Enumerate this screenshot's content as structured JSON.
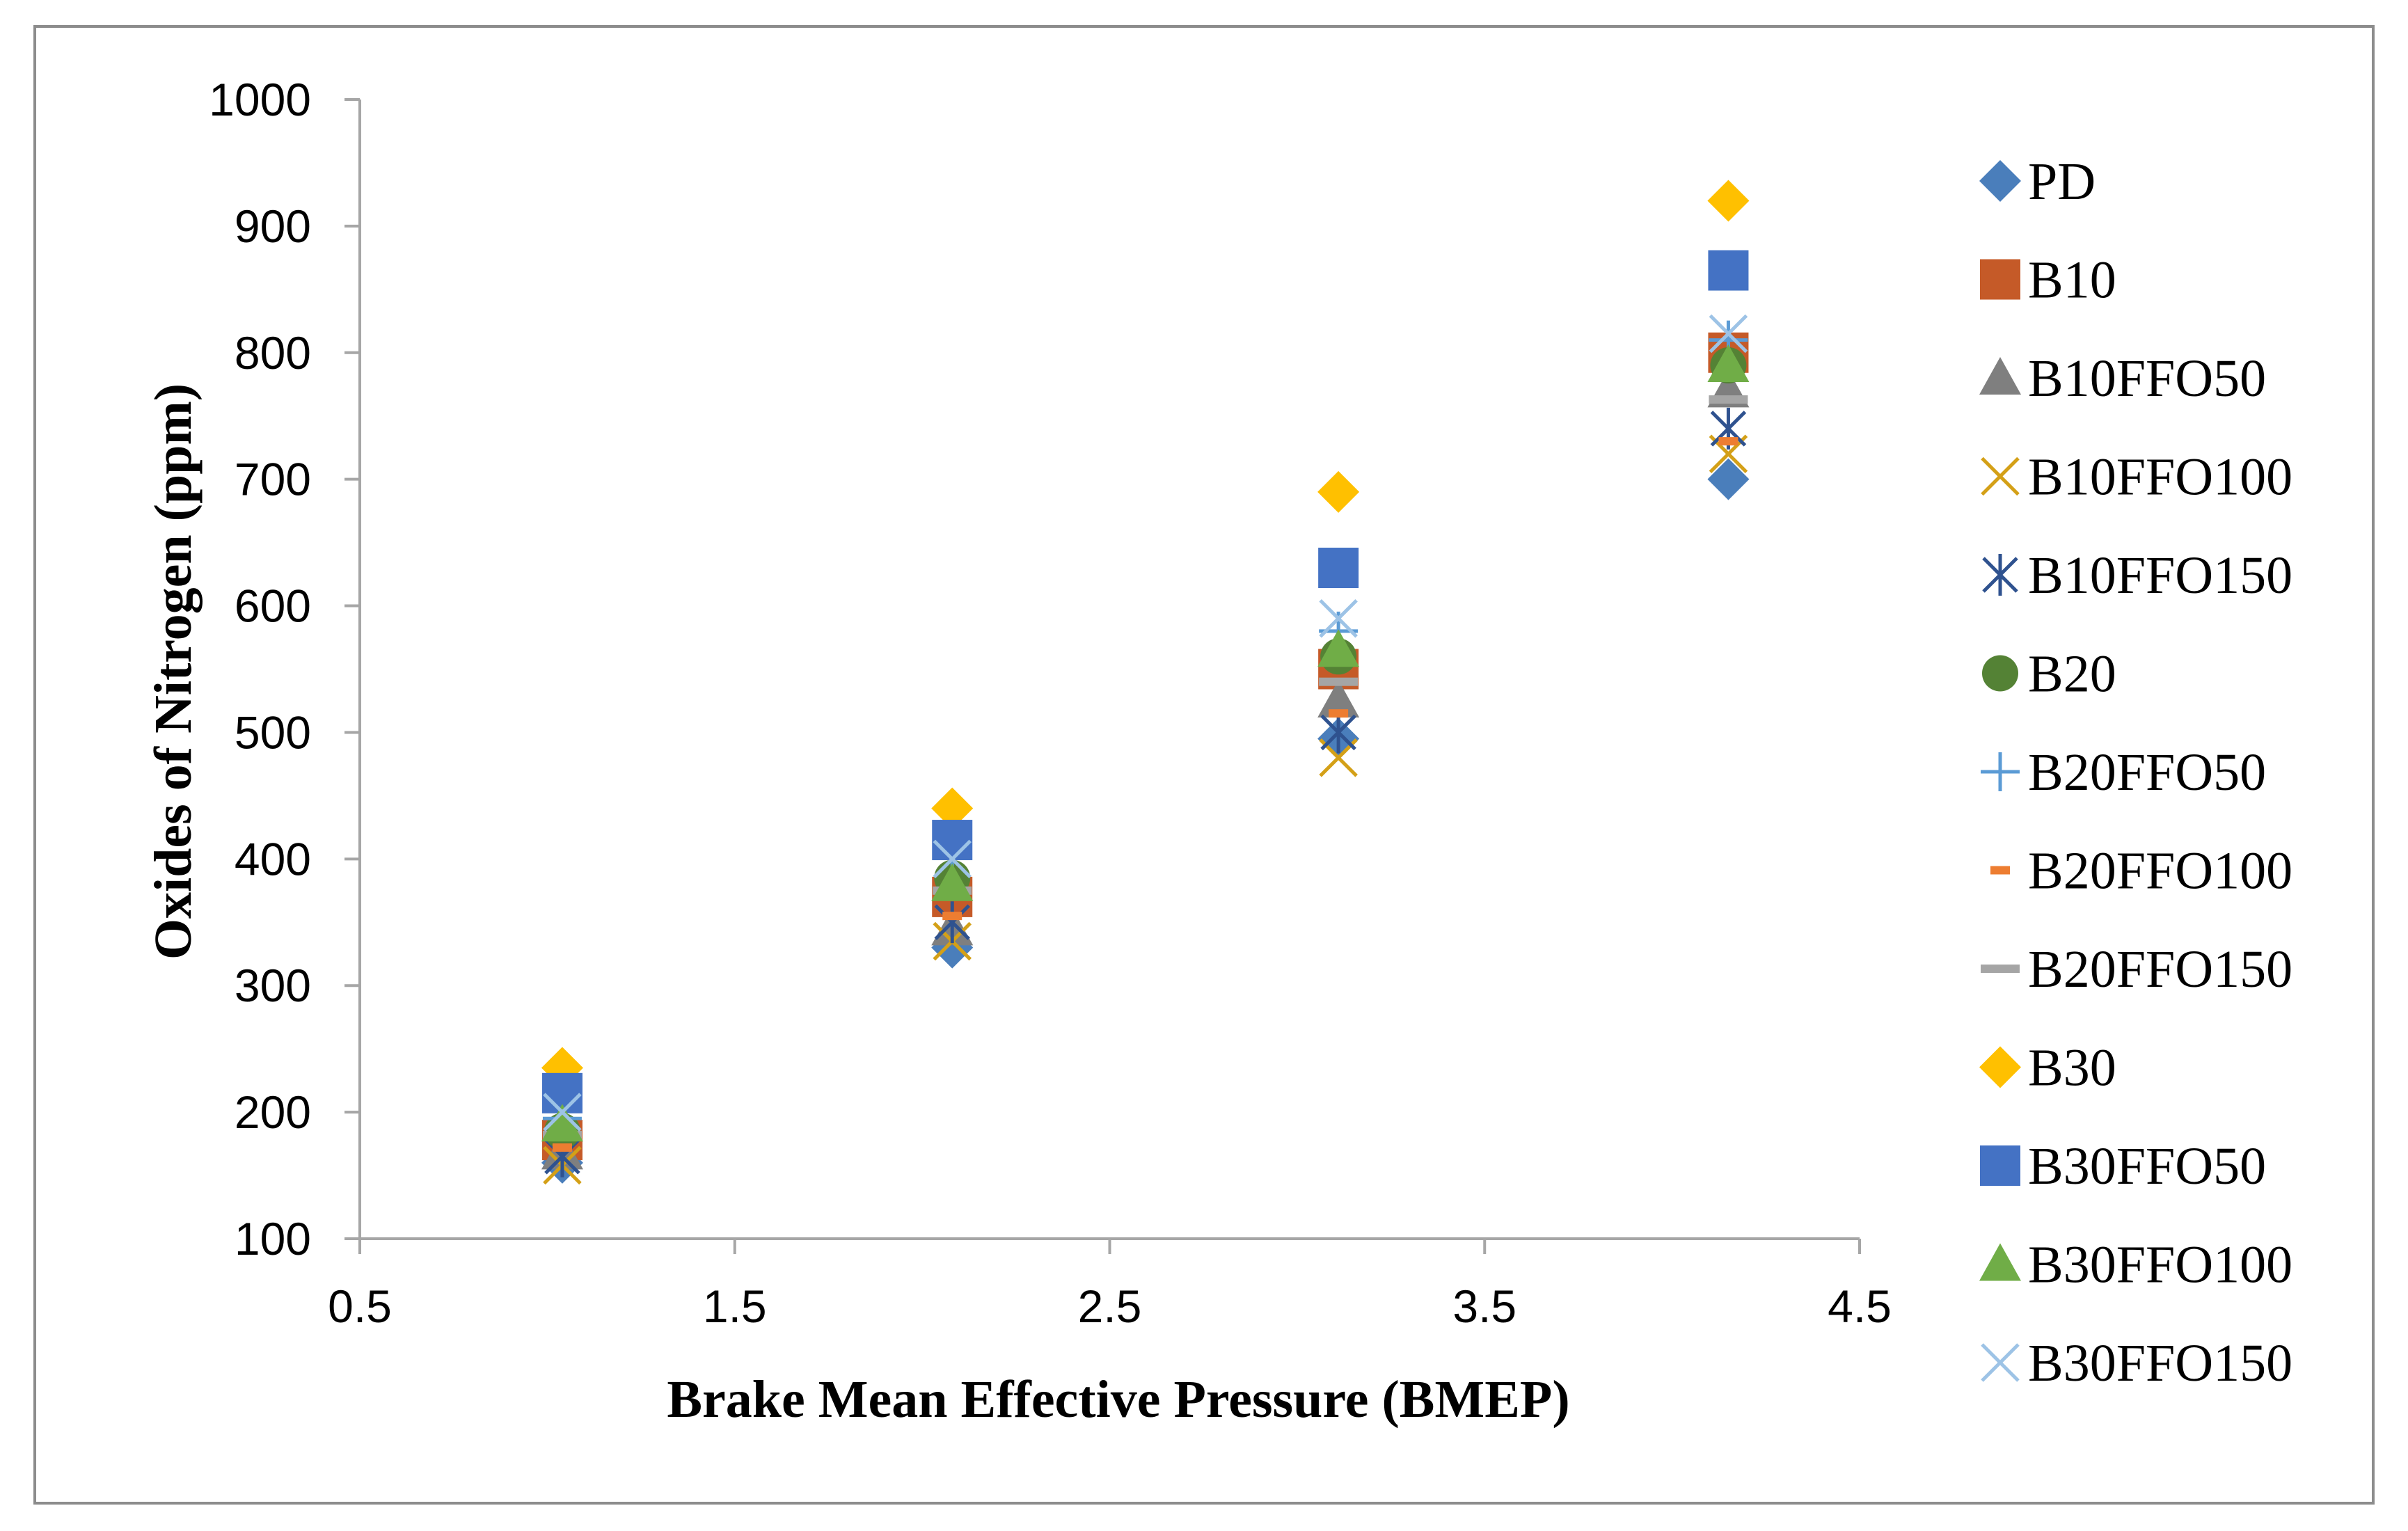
{
  "chart_data": {
    "type": "scatter",
    "title": "",
    "xlabel": "Brake Mean Effective Pressure (BMEP)",
    "ylabel": "Oxides of Nitrogen (ppm)",
    "xlim": [
      0.5,
      4.5
    ],
    "ylim": [
      100,
      1000
    ],
    "xticks": [
      0.5,
      1.5,
      2.5,
      3.5,
      4.5
    ],
    "xtick_labels": [
      "0.5",
      "1.5",
      "2.5",
      "3.5",
      "4.5"
    ],
    "yticks": [
      100,
      200,
      300,
      400,
      500,
      600,
      700,
      800,
      900,
      1000
    ],
    "ytick_labels": [
      "100",
      "200",
      "300",
      "400",
      "500",
      "600",
      "700",
      "800",
      "900",
      "1000"
    ],
    "grid": false,
    "legend_position": "right",
    "x": [
      1.04,
      2.08,
      3.11,
      4.15
    ],
    "series": [
      {
        "name": "PD",
        "marker": "diamond",
        "color": "#4a7ebb",
        "values": [
          160,
          330,
          495,
          700
        ]
      },
      {
        "name": "B10",
        "marker": "square",
        "color": "#c55a28",
        "values": [
          178,
          370,
          550,
          800
        ]
      },
      {
        "name": "B10FFO50",
        "marker": "triangle",
        "color": "#7f7f7f",
        "values": [
          168,
          345,
          525,
          770
        ]
      },
      {
        "name": "B10FFO100",
        "marker": "x",
        "color": "#d4a017",
        "values": [
          158,
          335,
          480,
          720
        ]
      },
      {
        "name": "B10FFO150",
        "marker": "star",
        "color": "#2f528f",
        "values": [
          165,
          350,
          500,
          740
        ]
      },
      {
        "name": "B20",
        "marker": "circle",
        "color": "#548235",
        "values": [
          185,
          385,
          560,
          790
        ]
      },
      {
        "name": "B20FFO50",
        "marker": "plus",
        "color": "#5b9bd5",
        "values": [
          195,
          405,
          580,
          810
        ]
      },
      {
        "name": "B20FFO100",
        "marker": "dash",
        "color": "#ed7d31",
        "values": [
          172,
          355,
          515,
          730
        ]
      },
      {
        "name": "B20FFO150",
        "marker": "longdash",
        "color": "#a5a5a5",
        "values": [
          182,
          375,
          540,
          763
        ]
      },
      {
        "name": "B30",
        "marker": "diamond",
        "color": "#ffc000",
        "values": [
          235,
          440,
          690,
          920
        ]
      },
      {
        "name": "B30FFO50",
        "marker": "square",
        "color": "#4472c4",
        "values": [
          215,
          415,
          630,
          865
        ]
      },
      {
        "name": "B30FFO100",
        "marker": "triangle",
        "color": "#70ad47",
        "values": [
          190,
          380,
          565,
          790
        ]
      },
      {
        "name": "B30FFO150",
        "marker": "x",
        "color": "#9dc3e6",
        "values": [
          200,
          400,
          590,
          815
        ]
      }
    ]
  }
}
